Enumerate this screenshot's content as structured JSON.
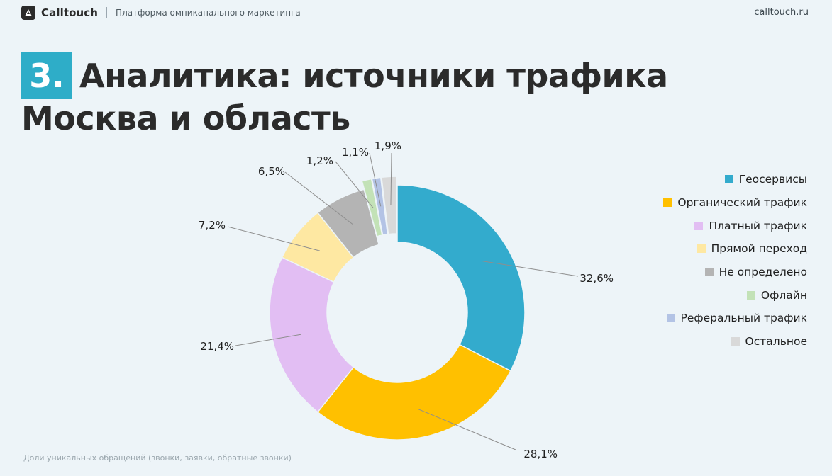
{
  "header": {
    "brand_name": "Calltouch",
    "tagline": "Платформа омниканального маркетинга",
    "url": "calltouch.ru"
  },
  "title": {
    "badge": "3.",
    "line1": "Аналитика: источники трафика",
    "line2": "Москва и область"
  },
  "colors": {
    "accent": "#2EADC8",
    "background": "#EDF4F8"
  },
  "chart_data": {
    "type": "pie",
    "donut": true,
    "start": "top, clockwise",
    "legend_position": "right",
    "categories": [
      "Геосервисы",
      "Органический трафик",
      "Платный трафик",
      "Прямой переход",
      "Не определено",
      "Офлайн",
      "Реферальный трафик",
      "Остальное"
    ],
    "values": [
      32.6,
      28.1,
      21.4,
      7.2,
      6.5,
      1.2,
      1.1,
      1.9
    ],
    "labels": [
      "32,6%",
      "28,1%",
      "21,4%",
      "7,2%",
      "6,5%",
      "1,2%",
      "1,1%",
      "1,9%"
    ],
    "colors": [
      "#33ABCD",
      "#FFC000",
      "#E2BEF3",
      "#FEE8A2",
      "#B4B4B4",
      "#C3E2B7",
      "#B3C3E5",
      "#D9D9D9"
    ],
    "exploded": [
      false,
      false,
      false,
      false,
      false,
      true,
      true,
      true
    ]
  },
  "footnote": "Доли уникальных обращений (звонки, заявки, обратные звонки)"
}
